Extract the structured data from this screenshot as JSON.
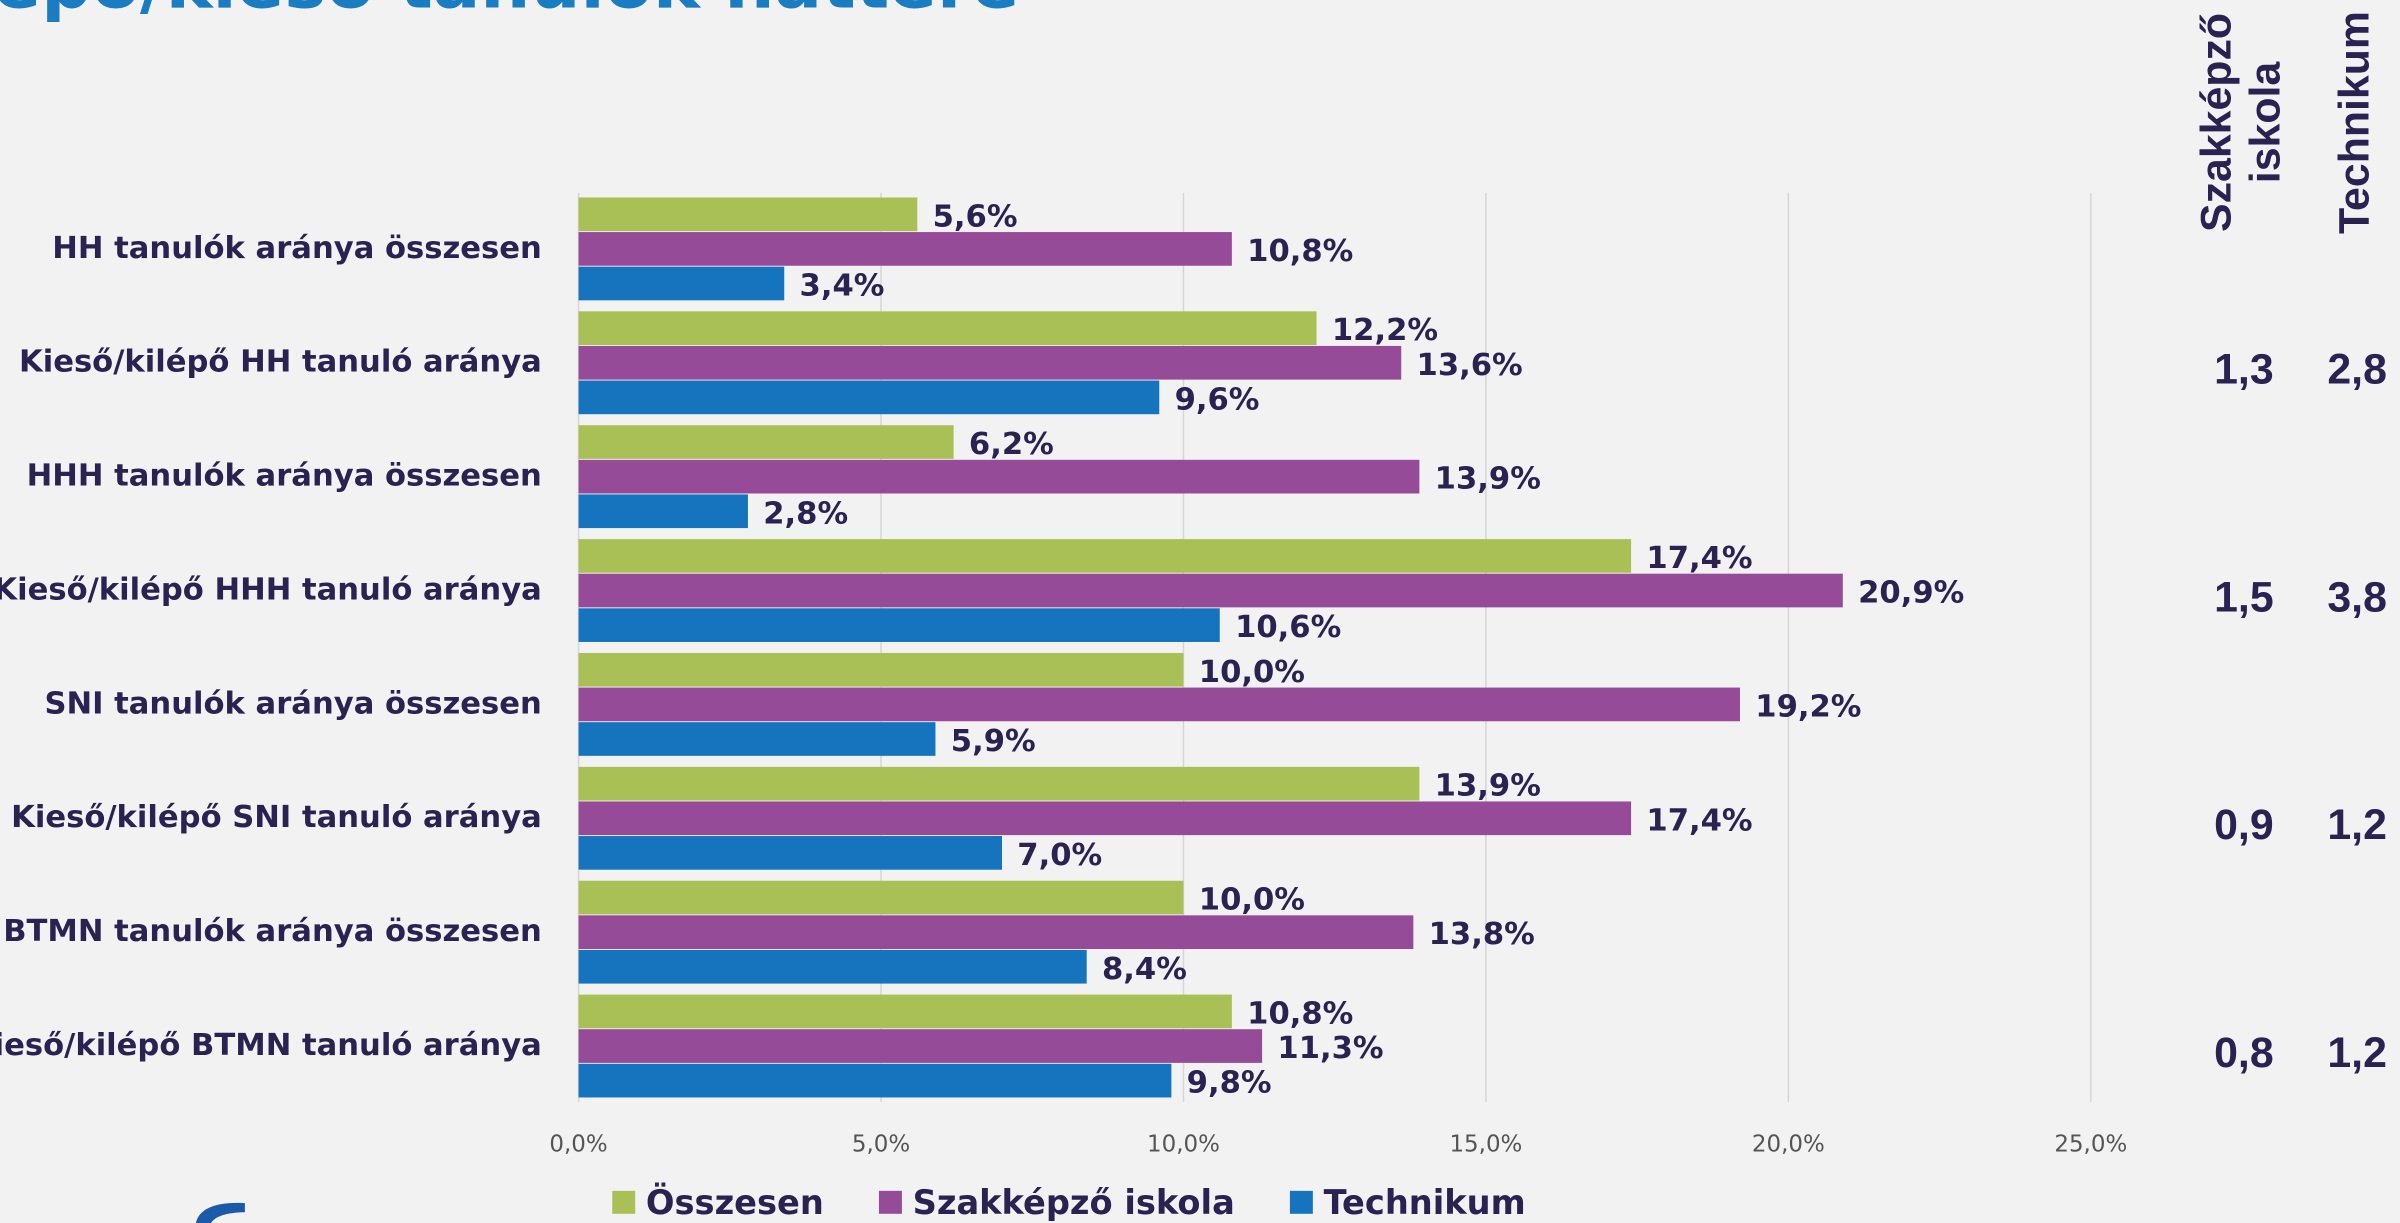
{
  "chart_data": {
    "type": "bar",
    "orientation": "horizontal",
    "title": "lépő/kieső tanulók háttere",
    "categories": [
      "HH tanulók aránya összesen",
      "Kieső/kilépő HH tanuló aránya",
      "HHH tanulók aránya összesen",
      "Kieső/kilépő HHH tanuló aránya",
      "SNI tanulók aránya összesen",
      "Kieső/kilépő SNI tanuló aránya",
      "BTMN tanulók aránya összesen",
      "Kieső/kilépő BTMN tanuló aránya"
    ],
    "series": [
      {
        "name": "Összesen",
        "color": "#a9c056",
        "values": [
          5.6,
          12.2,
          6.2,
          17.4,
          10.0,
          13.9,
          10.0,
          10.8
        ],
        "value_labels": [
          "5,6%",
          "12,2%",
          "6,2%",
          "17,4%",
          "10,0%",
          "13,9%",
          "10,0%",
          "10,8%"
        ]
      },
      {
        "name": "Szakképző iskola",
        "color": "#954b97",
        "values": [
          10.8,
          13.6,
          13.9,
          20.9,
          19.2,
          17.4,
          13.8,
          11.3
        ],
        "value_labels": [
          "10,8%",
          "13,6%",
          "13,9%",
          "20,9%",
          "19,2%",
          "17,4%",
          "13,8%",
          "11,3%"
        ]
      },
      {
        "name": "Technikum",
        "color": "#1574bd",
        "values": [
          3.4,
          9.6,
          2.8,
          10.6,
          5.9,
          7.0,
          8.4,
          9.8
        ],
        "value_labels": [
          "3,4%",
          "9,6%",
          "2,8%",
          "10,6%",
          "5,9%",
          "7,0%",
          "8,4%",
          "9,8%"
        ]
      }
    ],
    "xlim": [
      0,
      25
    ],
    "xticks": [
      {
        "value": 0,
        "label": "0,0%"
      },
      {
        "value": 5,
        "label": "5,0%"
      },
      {
        "value": 10,
        "label": "10,0%"
      },
      {
        "value": 15,
        "label": "15,0%"
      },
      {
        "value": 20,
        "label": "20,0%"
      },
      {
        "value": 25,
        "label": "25,0%"
      }
    ],
    "grid": true,
    "legend": "bottom",
    "side_table": {
      "headers": [
        [
          "Szakképző",
          "iskola"
        ],
        [
          "Technikum"
        ]
      ],
      "rows": [
        {
          "category": 1,
          "cells": [
            "1,3",
            "2,8"
          ]
        },
        {
          "category": 3,
          "cells": [
            "1,5",
            "3,8"
          ]
        },
        {
          "category": 5,
          "cells": [
            "0,9",
            "1,2"
          ]
        },
        {
          "category": 7,
          "cells": [
            "0,8",
            "1,2"
          ]
        }
      ]
    }
  }
}
